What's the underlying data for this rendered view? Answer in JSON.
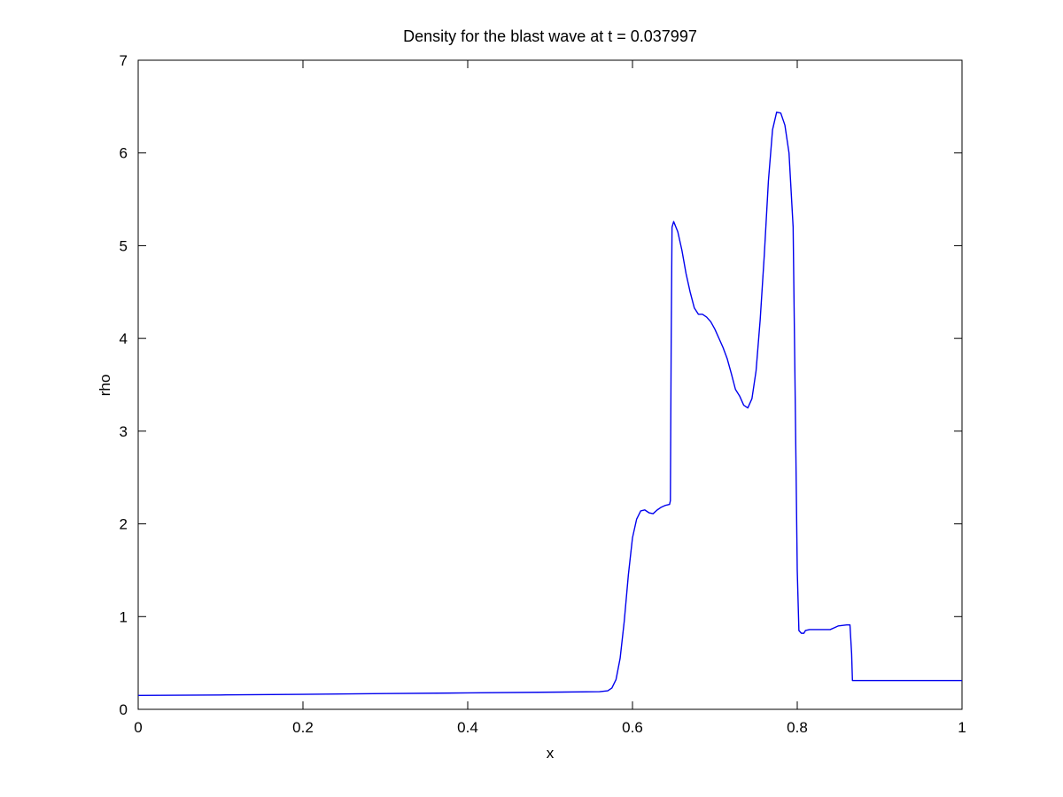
{
  "chart_data": {
    "type": "line",
    "title": "Density for the blast wave at t = 0.037997",
    "xlabel": "x",
    "ylabel": "rho",
    "xlim": [
      0,
      1
    ],
    "ylim": [
      0,
      7
    ],
    "x_ticks": [
      {
        "value": 0,
        "label": "0"
      },
      {
        "value": 0.2,
        "label": "0.2"
      },
      {
        "value": 0.4,
        "label": "0.4"
      },
      {
        "value": 0.6,
        "label": "0.6"
      },
      {
        "value": 0.8,
        "label": "0.8"
      },
      {
        "value": 1,
        "label": "1"
      }
    ],
    "y_ticks": [
      {
        "value": 0,
        "label": "0"
      },
      {
        "value": 1,
        "label": "1"
      },
      {
        "value": 2,
        "label": "2"
      },
      {
        "value": 3,
        "label": "3"
      },
      {
        "value": 4,
        "label": "4"
      },
      {
        "value": 5,
        "label": "5"
      },
      {
        "value": 6,
        "label": "6"
      },
      {
        "value": 7,
        "label": "7"
      }
    ],
    "grid": false,
    "legend": "none",
    "line_color": "#0000ee",
    "series": [
      {
        "x": [
          0,
          0.1,
          0.2,
          0.3,
          0.4,
          0.5,
          0.56,
          0.57,
          0.575,
          0.58,
          0.585,
          0.59,
          0.595,
          0.6,
          0.605,
          0.61,
          0.615,
          0.62,
          0.625,
          0.63,
          0.635,
          0.64,
          0.645,
          0.646,
          0.647,
          0.648,
          0.65,
          0.655,
          0.66,
          0.665,
          0.67,
          0.675,
          0.68,
          0.685,
          0.69,
          0.695,
          0.7,
          0.705,
          0.71,
          0.715,
          0.72,
          0.725,
          0.73,
          0.735,
          0.74,
          0.745,
          0.75,
          0.755,
          0.76,
          0.765,
          0.77,
          0.775,
          0.78,
          0.785,
          0.79,
          0.795,
          0.798,
          0.8,
          0.802,
          0.805,
          0.808,
          0.81,
          0.815,
          0.82,
          0.83,
          0.84,
          0.845,
          0.85,
          0.86,
          0.864,
          0.866,
          0.867,
          0.87,
          0.9,
          0.95,
          1.0
        ],
        "y": [
          0.15,
          0.155,
          0.162,
          0.17,
          0.177,
          0.185,
          0.19,
          0.2,
          0.23,
          0.32,
          0.55,
          0.95,
          1.45,
          1.85,
          2.05,
          2.14,
          2.15,
          2.12,
          2.11,
          2.15,
          2.18,
          2.2,
          2.21,
          2.25,
          4.0,
          5.2,
          5.26,
          5.15,
          4.95,
          4.7,
          4.5,
          4.33,
          4.26,
          4.26,
          4.23,
          4.18,
          4.1,
          4.0,
          3.9,
          3.78,
          3.62,
          3.45,
          3.38,
          3.28,
          3.25,
          3.35,
          3.65,
          4.2,
          4.9,
          5.7,
          6.25,
          6.44,
          6.43,
          6.3,
          6.0,
          5.2,
          3.0,
          1.5,
          0.85,
          0.82,
          0.82,
          0.85,
          0.86,
          0.86,
          0.86,
          0.86,
          0.88,
          0.9,
          0.91,
          0.91,
          0.6,
          0.31,
          0.31,
          0.31,
          0.31,
          0.31
        ]
      }
    ]
  }
}
